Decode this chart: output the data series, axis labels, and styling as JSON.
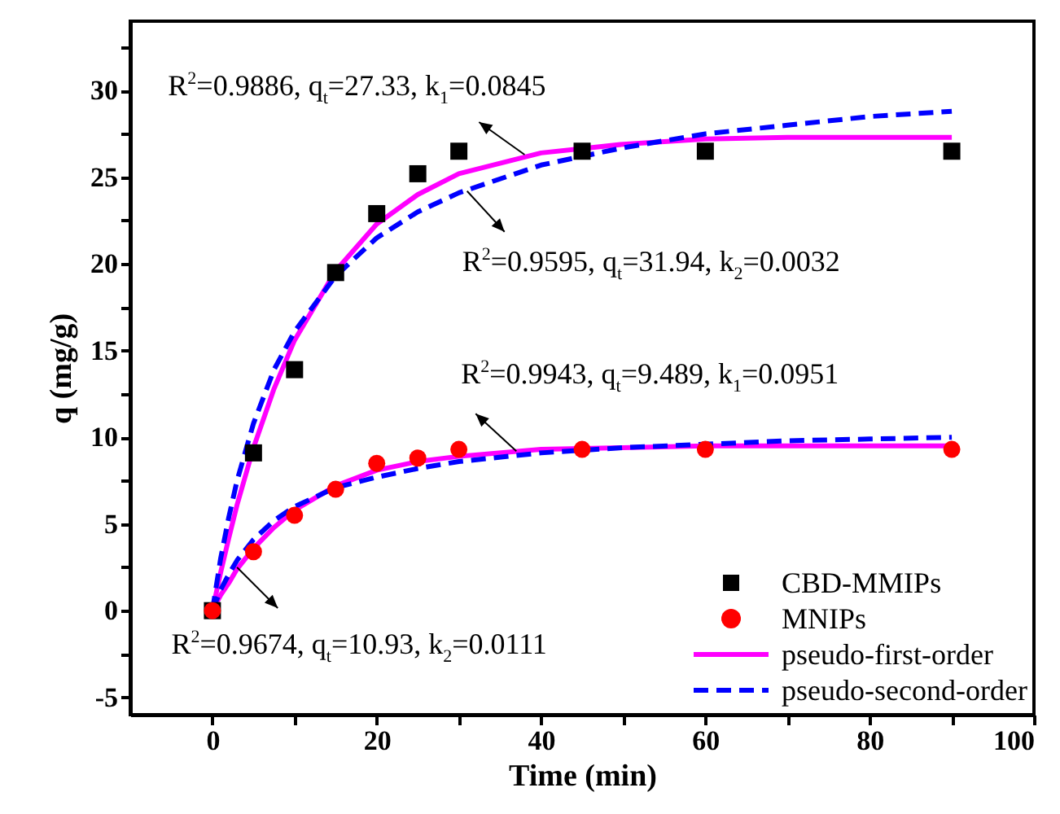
{
  "chart_data": {
    "type": "scatter",
    "xlabel": "Time (min)",
    "ylabel": "q (mg/g)",
    "xlim": [
      -10,
      100
    ],
    "ylim": [
      -6,
      34
    ],
    "xticks": [
      0,
      {
        "value": 10,
        "label": null
      },
      20,
      {
        "value": 30,
        "label": null
      },
      40,
      {
        "value": 50,
        "label": null
      },
      60,
      {
        "value": 70,
        "label": null
      },
      80,
      {
        "value": 90,
        "label": null
      },
      100
    ],
    "yticks": [
      -5,
      {
        "value": -2.5,
        "label": null
      },
      0,
      {
        "value": 2.5,
        "label": null
      },
      5,
      {
        "value": 7.5,
        "label": null
      },
      10,
      {
        "value": 12.5,
        "label": null
      },
      15,
      {
        "value": 17.5,
        "label": null
      },
      20,
      {
        "value": 22.5,
        "label": null
      },
      25,
      {
        "value": 27.5,
        "label": null
      },
      30,
      {
        "value": 32.5,
        "label": null
      }
    ],
    "grid": false,
    "legend": "bottom right",
    "series": [
      {
        "name": "CBD-MMIPs",
        "marker": "square",
        "color": "#000000",
        "x": [
          0,
          5,
          10,
          15,
          20,
          25,
          30,
          45,
          60,
          90
        ],
        "values": [
          0,
          9.1,
          13.9,
          19.5,
          22.9,
          25.2,
          26.5,
          26.5,
          26.5,
          26.5
        ]
      },
      {
        "name": "MNIPs",
        "marker": "circle",
        "color": "#ff0000",
        "x": [
          0,
          5,
          10,
          15,
          20,
          25,
          30,
          45,
          60,
          90
        ],
        "values": [
          0,
          3.4,
          5.5,
          7.0,
          8.5,
          8.8,
          9.3,
          9.3,
          9.3,
          9.3
        ]
      },
      {
        "name": "pseudo-first-order",
        "type": "line",
        "marker": "none",
        "line_style": "solid",
        "color": "#ff00ff",
        "x": [
          0,
          1,
          2,
          3,
          5,
          7.5,
          10,
          15,
          20,
          25,
          30,
          40,
          50,
          60,
          70,
          80,
          90
        ],
        "values": [
          0,
          2.2,
          4.2,
          6.1,
          9.4,
          12.8,
          15.6,
          19.6,
          22.3,
          24.0,
          25.2,
          26.4,
          26.9,
          27.2,
          27.3,
          27.3,
          27.3
        ]
      },
      {
        "name": "pseudo-second-order",
        "type": "line",
        "marker": "none",
        "line_style": "dashed",
        "color": "#0000ff",
        "x": [
          0,
          1,
          2,
          3,
          5,
          7.5,
          10,
          15,
          20,
          25,
          30,
          40,
          50,
          60,
          70,
          80,
          90
        ],
        "values": [
          0,
          3.0,
          5.4,
          7.5,
          10.8,
          13.9,
          16.1,
          19.3,
          21.5,
          23.0,
          24.1,
          25.7,
          26.7,
          27.5,
          28.0,
          28.5,
          28.8
        ]
      },
      {
        "type": "line",
        "marker": "none",
        "line_style": "solid",
        "color": "#ff00ff",
        "x": [
          0,
          1,
          2,
          3,
          5,
          7.5,
          10,
          15,
          20,
          25,
          30,
          40,
          50,
          60,
          70,
          80,
          90
        ],
        "values": [
          0,
          0.9,
          1.6,
          2.4,
          3.6,
          4.8,
          5.8,
          7.2,
          8.1,
          8.6,
          8.9,
          9.3,
          9.4,
          9.5,
          9.5,
          9.5,
          9.5
        ]
      },
      {
        "type": "line",
        "marker": "none",
        "line_style": "dashed",
        "color": "#0000ff",
        "x": [
          0,
          1,
          2,
          3,
          5,
          7.5,
          10,
          15,
          20,
          25,
          30,
          40,
          50,
          60,
          70,
          80,
          90
        ],
        "values": [
          0,
          1.2,
          2.1,
          2.9,
          4.1,
          5.2,
          6.0,
          7.1,
          7.7,
          8.2,
          8.6,
          9.1,
          9.4,
          9.6,
          9.8,
          9.9,
          10.0
        ]
      }
    ],
    "annotations": [
      {
        "text": "R$^{2}$=0.9886, q$_{t}$=27.33, k$_{1}$=0.0845",
        "x": 38,
        "y": 26.3
      },
      {
        "text": "R$^{2}$=0.9595, q$_{t}$=31.94, k$_{2}$=0.0032",
        "x": 31,
        "y": 24.2
      },
      {
        "text": "R$^{2}$=0.9943, q$_{t}$=9.489, k$_{1}$=0.0951",
        "x": 37,
        "y": 9.2
      },
      {
        "text": "R$^{2}$=0.9674, q$_{t}$=10.93, k$_{2}$=0.0111",
        "x": 3,
        "y": 2.5
      }
    ]
  }
}
